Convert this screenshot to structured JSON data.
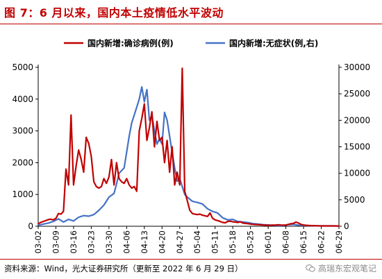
{
  "header": {
    "title": "图 7：6 月以来，国内本土疫情低水平波动"
  },
  "footer": {
    "source": "资料来源：Wind，光大证券研究所（更新至 2022 年 6 月 29 日）",
    "watermark": "高瑞东宏观笔记",
    "watermark_icon": "wechat-icon"
  },
  "chart_data": {
    "type": "line",
    "title": "",
    "xlabel": "",
    "ylabel": "",
    "x_ticks": [
      "03-02",
      "03-09",
      "03-16",
      "03-23",
      "03-30",
      "04-06",
      "04-13",
      "04-20",
      "04-27",
      "05-04",
      "05-11",
      "05-18",
      "05-25",
      "06-01",
      "06-08",
      "06-15",
      "06-22",
      "06-29"
    ],
    "y_left": {
      "lim": [
        0,
        5000
      ],
      "ticks": [
        0,
        1000,
        2000,
        3000,
        4000,
        5000
      ]
    },
    "y_right": {
      "lim": [
        0,
        30000
      ],
      "ticks": [
        0,
        5000,
        10000,
        15000,
        20000,
        25000,
        30000
      ]
    },
    "legend_position": "top",
    "series": [
      {
        "name": "国内新增:确诊病例(例)",
        "axis": "left",
        "color": "#c00000",
        "points": [
          [
            "03-02",
            80
          ],
          [
            "03-03",
            120
          ],
          [
            "03-04",
            150
          ],
          [
            "03-05",
            180
          ],
          [
            "03-06",
            210
          ],
          [
            "03-07",
            220
          ],
          [
            "03-08",
            200
          ],
          [
            "03-09",
            250
          ],
          [
            "03-10",
            400
          ],
          [
            "03-11",
            380
          ],
          [
            "03-12",
            470
          ],
          [
            "03-13",
            1800
          ],
          [
            "03-14",
            1300
          ],
          [
            "03-15",
            3500
          ],
          [
            "03-16",
            1300
          ],
          [
            "03-17",
            1900
          ],
          [
            "03-18",
            2400
          ],
          [
            "03-19",
            2100
          ],
          [
            "03-20",
            1700
          ],
          [
            "03-21",
            2800
          ],
          [
            "03-22",
            2600
          ],
          [
            "03-23",
            2200
          ],
          [
            "03-24",
            1400
          ],
          [
            "03-25",
            1250
          ],
          [
            "03-26",
            1200
          ],
          [
            "03-27",
            1250
          ],
          [
            "03-28",
            1500
          ],
          [
            "03-29",
            1350
          ],
          [
            "03-30",
            1550
          ],
          [
            "03-31",
            2100
          ],
          [
            "04-01",
            1300
          ],
          [
            "04-02",
            2000
          ],
          [
            "04-03",
            1500
          ],
          [
            "04-04",
            1400
          ],
          [
            "04-05",
            1350
          ],
          [
            "04-06",
            1500
          ],
          [
            "04-07",
            1300
          ],
          [
            "04-08",
            1200
          ],
          [
            "04-09",
            1250
          ],
          [
            "04-10",
            1100
          ],
          [
            "04-11",
            3000
          ],
          [
            "04-12",
            3400
          ],
          [
            "04-13",
            3850
          ],
          [
            "04-14",
            2700
          ],
          [
            "04-15",
            3100
          ],
          [
            "04-16",
            3600
          ],
          [
            "04-17",
            2500
          ],
          [
            "04-18",
            3300
          ],
          [
            "04-19",
            2700
          ],
          [
            "04-20",
            2800
          ],
          [
            "04-21",
            2000
          ],
          [
            "04-22",
            2700
          ],
          [
            "04-23",
            1700
          ],
          [
            "04-24",
            2500
          ],
          [
            "04-25",
            1300
          ],
          [
            "04-26",
            1700
          ],
          [
            "04-27",
            1300
          ],
          [
            "04-28",
            4970
          ],
          [
            "04-29",
            1100
          ],
          [
            "04-30",
            800
          ],
          [
            "05-01",
            500
          ],
          [
            "05-02",
            400
          ],
          [
            "05-03",
            380
          ],
          [
            "05-04",
            370
          ],
          [
            "05-05",
            380
          ],
          [
            "05-06",
            350
          ],
          [
            "05-07",
            330
          ],
          [
            "05-08",
            310
          ],
          [
            "05-09",
            420
          ],
          [
            "05-10",
            250
          ],
          [
            "05-11",
            200
          ],
          [
            "05-12",
            180
          ],
          [
            "05-13",
            150
          ],
          [
            "05-14",
            120
          ],
          [
            "05-15",
            110
          ],
          [
            "05-16",
            150
          ],
          [
            "05-17",
            160
          ],
          [
            "05-18",
            140
          ],
          [
            "05-19",
            130
          ],
          [
            "05-20",
            120
          ],
          [
            "05-21",
            140
          ],
          [
            "05-22",
            100
          ],
          [
            "05-23",
            90
          ],
          [
            "05-24",
            80
          ],
          [
            "05-25",
            70
          ],
          [
            "05-26",
            60
          ],
          [
            "05-27",
            55
          ],
          [
            "05-28",
            50
          ],
          [
            "05-29",
            45
          ],
          [
            "05-30",
            40
          ],
          [
            "05-31",
            35
          ],
          [
            "06-01",
            30
          ],
          [
            "06-02",
            30
          ],
          [
            "06-03",
            35
          ],
          [
            "06-04",
            40
          ],
          [
            "06-05",
            45
          ],
          [
            "06-06",
            40
          ],
          [
            "06-07",
            35
          ],
          [
            "06-08",
            40
          ],
          [
            "06-09",
            60
          ],
          [
            "06-10",
            80
          ],
          [
            "06-11",
            90
          ],
          [
            "06-12",
            130
          ],
          [
            "06-13",
            100
          ],
          [
            "06-14",
            60
          ],
          [
            "06-15",
            40
          ],
          [
            "06-16",
            30
          ],
          [
            "06-17",
            25
          ],
          [
            "06-18",
            20
          ],
          [
            "06-19",
            18
          ],
          [
            "06-20",
            15
          ],
          [
            "06-21",
            12
          ],
          [
            "06-22",
            10
          ],
          [
            "06-23",
            10
          ],
          [
            "06-24",
            12
          ],
          [
            "06-25",
            12
          ],
          [
            "06-26",
            10
          ],
          [
            "06-27",
            10
          ],
          [
            "06-28",
            9
          ],
          [
            "06-29",
            8
          ]
        ]
      },
      {
        "name": "国内新增:无症状(例,右)",
        "axis": "right",
        "color": "#4472c4",
        "points": [
          [
            "03-02",
            200
          ],
          [
            "03-04",
            400
          ],
          [
            "03-06",
            600
          ],
          [
            "03-08",
            900
          ],
          [
            "03-10",
            1400
          ],
          [
            "03-12",
            800
          ],
          [
            "03-14",
            1300
          ],
          [
            "03-16",
            1000
          ],
          [
            "03-18",
            1700
          ],
          [
            "03-20",
            2000
          ],
          [
            "03-22",
            1900
          ],
          [
            "03-24",
            2200
          ],
          [
            "03-26",
            3000
          ],
          [
            "03-28",
            4000
          ],
          [
            "03-30",
            5500
          ],
          [
            "04-01",
            6200
          ],
          [
            "04-02",
            8000
          ],
          [
            "04-03",
            10000
          ],
          [
            "04-05",
            11000
          ],
          [
            "04-06",
            14000
          ],
          [
            "04-07",
            17000
          ],
          [
            "04-08",
            19500
          ],
          [
            "04-09",
            21000
          ],
          [
            "04-10",
            22500
          ],
          [
            "04-11",
            24000
          ],
          [
            "04-12",
            26300
          ],
          [
            "04-13",
            23500
          ],
          [
            "04-14",
            25800
          ],
          [
            "04-15",
            20000
          ],
          [
            "04-16",
            21000
          ],
          [
            "04-17",
            18000
          ],
          [
            "04-18",
            15500
          ],
          [
            "04-19",
            16500
          ],
          [
            "04-20",
            15500
          ],
          [
            "04-21",
            21500
          ],
          [
            "04-22",
            20000
          ],
          [
            "04-23",
            17000
          ],
          [
            "04-24",
            14000
          ],
          [
            "04-25",
            11000
          ],
          [
            "04-26",
            8500
          ],
          [
            "04-27",
            9000
          ],
          [
            "04-28",
            7500
          ],
          [
            "04-29",
            6000
          ],
          [
            "04-30",
            5500
          ],
          [
            "05-02",
            4700
          ],
          [
            "05-04",
            4500
          ],
          [
            "05-06",
            4200
          ],
          [
            "05-08",
            3300
          ],
          [
            "05-10",
            2800
          ],
          [
            "05-12",
            2500
          ],
          [
            "05-14",
            1600
          ],
          [
            "05-16",
            1200
          ],
          [
            "05-18",
            1300
          ],
          [
            "05-20",
            900
          ],
          [
            "05-22",
            800
          ],
          [
            "05-24",
            700
          ],
          [
            "05-26",
            500
          ],
          [
            "05-28",
            400
          ],
          [
            "05-30",
            300
          ],
          [
            "06-01",
            250
          ],
          [
            "06-03",
            200
          ],
          [
            "06-05",
            150
          ],
          [
            "06-07",
            150
          ],
          [
            "06-09",
            300
          ],
          [
            "06-11",
            350
          ],
          [
            "06-13",
            200
          ],
          [
            "06-15",
            150
          ],
          [
            "06-18",
            100
          ],
          [
            "06-21",
            80
          ],
          [
            "06-24",
            70
          ],
          [
            "06-27",
            60
          ],
          [
            "06-29",
            50
          ]
        ]
      }
    ]
  }
}
